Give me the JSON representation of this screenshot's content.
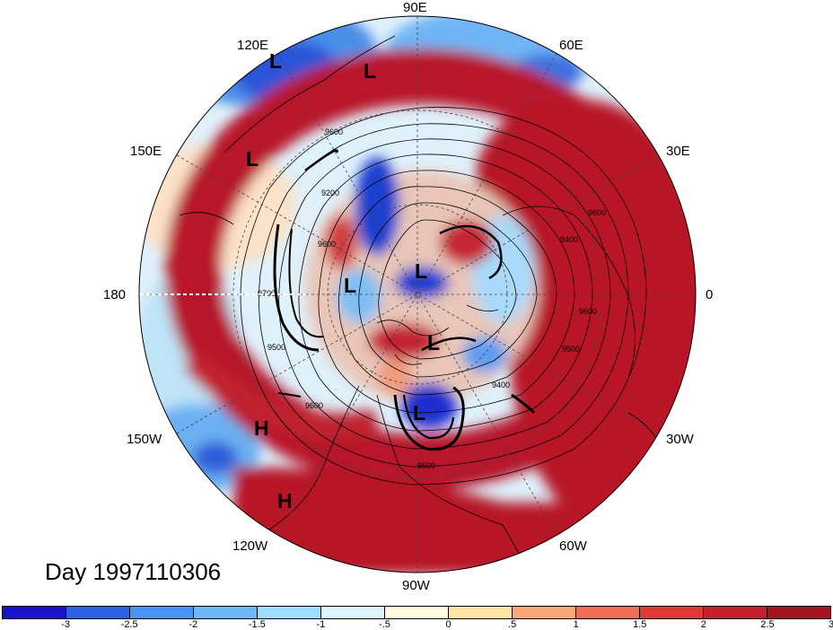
{
  "date_label": "Day 1997110306",
  "longitude_labels": [
    {
      "text": "90E",
      "key": "lon-90e"
    },
    {
      "text": "60E",
      "key": "lon-60e"
    },
    {
      "text": "30E",
      "key": "lon-30e"
    },
    {
      "text": "0",
      "key": "lon-0"
    },
    {
      "text": "30W",
      "key": "lon-30w"
    },
    {
      "text": "60W",
      "key": "lon-60w"
    },
    {
      "text": "90W",
      "key": "lon-90w"
    },
    {
      "text": "120W",
      "key": "lon-120w"
    },
    {
      "text": "150W",
      "key": "lon-150w"
    },
    {
      "text": "180",
      "key": "lon-180"
    },
    {
      "text": "150E",
      "key": "lon-150e"
    },
    {
      "text": "120E",
      "key": "lon-120e"
    }
  ],
  "pressure_marks": [
    "L",
    "L",
    "L",
    "L",
    "L",
    "L",
    "L",
    "H",
    "H"
  ],
  "contour_labels": [
    "9600",
    "9700",
    "9200",
    "9600",
    "9600",
    "9500",
    "9400",
    "9600",
    "9500",
    "9600",
    "9400",
    "9500"
  ],
  "colorbar": {
    "colors": [
      "#1b0fd0",
      "#2f60e8",
      "#4a94f2",
      "#6fb8f8",
      "#a0dcfb",
      "#dff4fd",
      "#fffbe0",
      "#fde6a8",
      "#f8a878",
      "#f06e58",
      "#e33838",
      "#c81e2e",
      "#a51222"
    ],
    "labels": [
      "-3",
      "-2.5",
      "-2",
      "-1.5",
      "-1",
      "-.5",
      "0",
      ".5",
      "1",
      "1.5",
      "2",
      "2.5",
      "3"
    ]
  }
}
